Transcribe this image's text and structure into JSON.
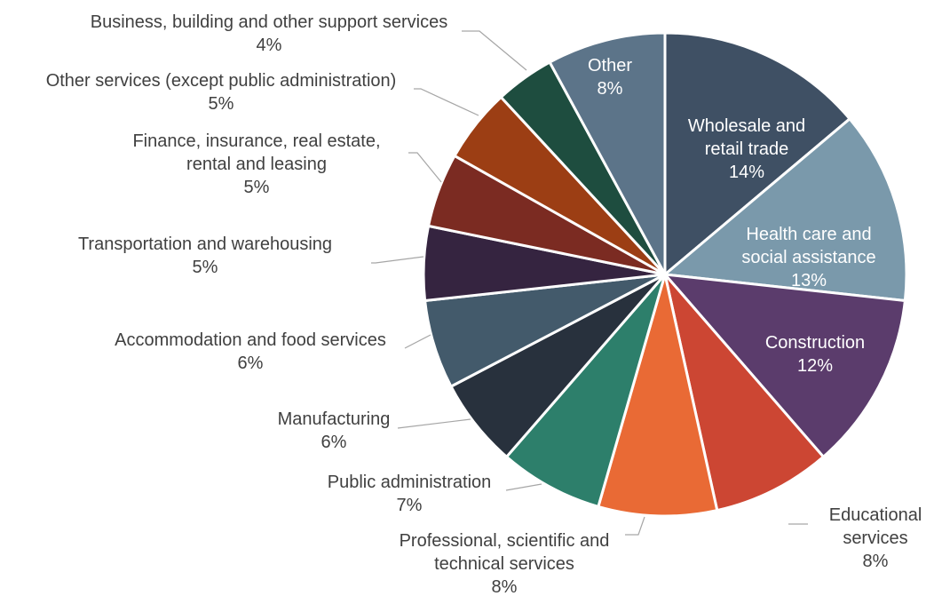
{
  "chart_data": {
    "type": "pie",
    "title": "",
    "slices": [
      {
        "label": "Wholesale and retail trade",
        "value": 14,
        "value_label": "14%",
        "color": "#3F5064",
        "label_inside": true
      },
      {
        "label": "Health care and social assistance",
        "value": 13,
        "value_label": "13%",
        "color": "#7A99AB",
        "label_inside": true
      },
      {
        "label": "Construction",
        "value": 12,
        "value_label": "12%",
        "color": "#5B3C6C",
        "label_inside": true
      },
      {
        "label": "Educational services",
        "value": 8,
        "value_label": "8%",
        "color": "#CC4633",
        "label_inside": false
      },
      {
        "label": "Professional, scientific and technical services",
        "value": 8,
        "value_label": "8%",
        "color": "#E96A35",
        "label_inside": false
      },
      {
        "label": "Public administration",
        "value": 7,
        "value_label": "7%",
        "color": "#2D7F6B",
        "label_inside": false
      },
      {
        "label": "Manufacturing",
        "value": 6,
        "value_label": "6%",
        "color": "#28313D",
        "label_inside": false
      },
      {
        "label": "Accommodation and food services",
        "value": 6,
        "value_label": "6%",
        "color": "#435A6B",
        "label_inside": false
      },
      {
        "label": "Transportation and warehousing",
        "value": 5,
        "value_label": "5%",
        "color": "#352440",
        "label_inside": false
      },
      {
        "label": "Finance, insurance, real estate, rental and leasing",
        "value": 5,
        "value_label": "5%",
        "color": "#7B2B22",
        "label_inside": false
      },
      {
        "label": "Other services (except public administration)",
        "value": 5,
        "value_label": "5%",
        "color": "#9C3E14",
        "label_inside": false
      },
      {
        "label": "Business, building and other support services",
        "value": 4,
        "value_label": "4%",
        "color": "#1E4D3F",
        "label_inside": false
      },
      {
        "label": "Other",
        "value": 8,
        "value_label": "8%",
        "color": "#5C7489",
        "label_inside": true
      }
    ],
    "legend": "none",
    "start": "12 o'clock, clockwise"
  }
}
